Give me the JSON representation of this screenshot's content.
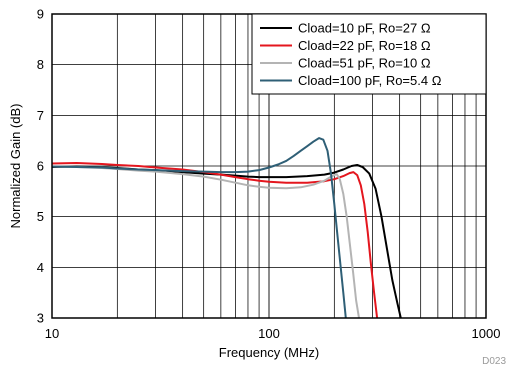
{
  "chart_data": {
    "type": "line",
    "xlabel": "Frequency (MHz)",
    "ylabel": "Normalized Gain (dB)",
    "xscale": "log",
    "xlim": [
      10,
      1000
    ],
    "ylim": [
      3,
      9
    ],
    "xticks": [
      "10",
      "100",
      "1000"
    ],
    "yticks": [
      "3",
      "4",
      "5",
      "6",
      "7",
      "8",
      "9"
    ],
    "grid": true,
    "legend_position": "top-right",
    "figure_code": "D023",
    "series": [
      {
        "name": "Cload=10 pF, Ro=27 Ω",
        "color": "#000000",
        "points": [
          [
            10,
            5.98
          ],
          [
            13,
            5.99
          ],
          [
            17,
            5.97
          ],
          [
            20,
            5.96
          ],
          [
            25,
            5.93
          ],
          [
            30,
            5.92
          ],
          [
            40,
            5.88
          ],
          [
            50,
            5.85
          ],
          [
            60,
            5.83
          ],
          [
            70,
            5.81
          ],
          [
            80,
            5.79
          ],
          [
            90,
            5.78
          ],
          [
            100,
            5.78
          ],
          [
            120,
            5.78
          ],
          [
            150,
            5.8
          ],
          [
            180,
            5.83
          ],
          [
            200,
            5.87
          ],
          [
            220,
            5.93
          ],
          [
            240,
            6.0
          ],
          [
            255,
            6.02
          ],
          [
            270,
            5.98
          ],
          [
            290,
            5.85
          ],
          [
            310,
            5.55
          ],
          [
            330,
            5.0
          ],
          [
            350,
            4.35
          ],
          [
            370,
            3.75
          ],
          [
            390,
            3.3
          ],
          [
            405,
            3.0
          ]
        ]
      },
      {
        "name": "Cload=22 pF, Ro=18 Ω",
        "color": "#e4161e",
        "points": [
          [
            10,
            6.05
          ],
          [
            13,
            6.06
          ],
          [
            17,
            6.04
          ],
          [
            20,
            6.02
          ],
          [
            25,
            6.0
          ],
          [
            30,
            5.97
          ],
          [
            40,
            5.93
          ],
          [
            50,
            5.88
          ],
          [
            60,
            5.83
          ],
          [
            70,
            5.78
          ],
          [
            80,
            5.74
          ],
          [
            90,
            5.71
          ],
          [
            100,
            5.69
          ],
          [
            120,
            5.67
          ],
          [
            150,
            5.67
          ],
          [
            180,
            5.7
          ],
          [
            200,
            5.74
          ],
          [
            220,
            5.8
          ],
          [
            235,
            5.86
          ],
          [
            245,
            5.88
          ],
          [
            255,
            5.82
          ],
          [
            265,
            5.62
          ],
          [
            275,
            5.25
          ],
          [
            285,
            4.7
          ],
          [
            295,
            4.05
          ],
          [
            305,
            3.5
          ],
          [
            315,
            3.0
          ]
        ]
      },
      {
        "name": "Cload=51 pF, Ro=10 Ω",
        "color": "#b4b4b4",
        "points": [
          [
            10,
            5.99
          ],
          [
            13,
            5.98
          ],
          [
            17,
            5.96
          ],
          [
            20,
            5.94
          ],
          [
            25,
            5.91
          ],
          [
            30,
            5.89
          ],
          [
            40,
            5.84
          ],
          [
            50,
            5.79
          ],
          [
            60,
            5.73
          ],
          [
            70,
            5.67
          ],
          [
            80,
            5.62
          ],
          [
            90,
            5.59
          ],
          [
            100,
            5.57
          ],
          [
            120,
            5.56
          ],
          [
            140,
            5.58
          ],
          [
            160,
            5.63
          ],
          [
            180,
            5.71
          ],
          [
            195,
            5.8
          ],
          [
            205,
            5.84
          ],
          [
            212,
            5.74
          ],
          [
            220,
            5.45
          ],
          [
            228,
            5.0
          ],
          [
            236,
            4.45
          ],
          [
            244,
            3.9
          ],
          [
            252,
            3.35
          ],
          [
            260,
            3.0
          ]
        ]
      },
      {
        "name": "Cload=100 pF, Ro=5.4 Ω",
        "color": "#2f5f76",
        "points": [
          [
            10,
            5.99
          ],
          [
            13,
            5.98
          ],
          [
            17,
            5.97
          ],
          [
            20,
            5.95
          ],
          [
            25,
            5.93
          ],
          [
            30,
            5.92
          ],
          [
            40,
            5.9
          ],
          [
            50,
            5.89
          ],
          [
            60,
            5.88
          ],
          [
            70,
            5.88
          ],
          [
            80,
            5.89
          ],
          [
            90,
            5.92
          ],
          [
            100,
            5.97
          ],
          [
            110,
            6.03
          ],
          [
            120,
            6.1
          ],
          [
            130,
            6.2
          ],
          [
            140,
            6.3
          ],
          [
            150,
            6.39
          ],
          [
            160,
            6.48
          ],
          [
            170,
            6.55
          ],
          [
            178,
            6.52
          ],
          [
            186,
            6.3
          ],
          [
            193,
            5.85
          ],
          [
            200,
            5.25
          ],
          [
            207,
            4.6
          ],
          [
            214,
            4.0
          ],
          [
            220,
            3.5
          ],
          [
            226,
            3.0
          ]
        ]
      }
    ]
  }
}
